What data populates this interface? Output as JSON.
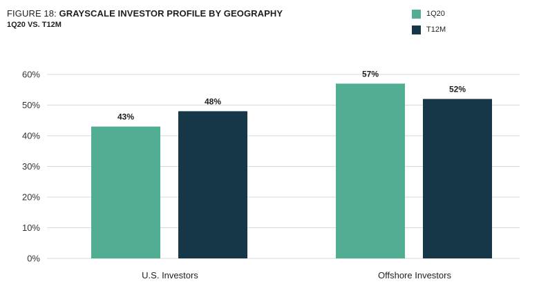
{
  "header": {
    "title_prefix": "FIGURE 18: ",
    "title_main": "GRAYSCALE INVESTOR PROFILE BY GEOGRAPHY",
    "subtitle": "1Q20 VS. T12M"
  },
  "legend": [
    {
      "label": "1Q20",
      "color": "#52ae93"
    },
    {
      "label": "T12M",
      "color": "#163747"
    }
  ],
  "chart_data": {
    "type": "bar",
    "title": "FIGURE 18: GRAYSCALE INVESTOR PROFILE BY GEOGRAPHY",
    "subtitle": "1Q20 VS. T12M",
    "categories": [
      "U.S. Investors",
      "Offshore Investors"
    ],
    "series": [
      {
        "name": "1Q20",
        "values": [
          43,
          57
        ],
        "labels": [
          "43%",
          "57%"
        ],
        "color": "#52ae93"
      },
      {
        "name": "T12M",
        "values": [
          48,
          52
        ],
        "labels": [
          "48%",
          "52%"
        ],
        "color": "#163747"
      }
    ],
    "ylim": [
      0,
      60
    ],
    "yticks": [
      0,
      10,
      20,
      30,
      40,
      50,
      60
    ],
    "ytick_labels": [
      "0%",
      "10%",
      "20%",
      "30%",
      "40%",
      "50%",
      "60%"
    ],
    "grid": true,
    "legend_position": "top-right",
    "xlabel": "",
    "ylabel": ""
  }
}
